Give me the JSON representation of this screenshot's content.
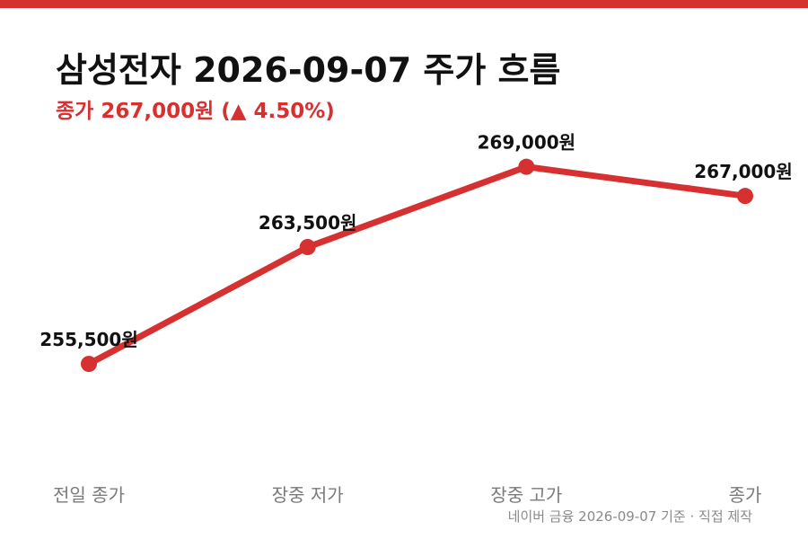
{
  "theme": {
    "accent": "#d63031",
    "text": "#111111",
    "label": "#7a7a7a",
    "source": "#8a8a8a"
  },
  "header": {
    "title": "삼성전자 2026-09-07 주가 흐름",
    "subtitle": "종가 267,000원 (▲ 4.50%)"
  },
  "chart_data": {
    "type": "line",
    "title": "삼성전자 2026-09-07 주가 흐름",
    "subtitle": "종가 267,000원 (▲ 4.50%)",
    "categories": [
      "전일 종가",
      "장중 저가",
      "장중 고가",
      "종가"
    ],
    "values": [
      255500,
      263500,
      269000,
      267000
    ],
    "data_labels": [
      "255,500원",
      "263,500원",
      "269,000원",
      "267,000원"
    ],
    "ylim": [
      248000,
      275500
    ],
    "grid": false,
    "legend": "none",
    "color": "#d63031"
  },
  "footer": {
    "source": "네이버 금융 2026-09-07 기준 · 직접 제작"
  }
}
